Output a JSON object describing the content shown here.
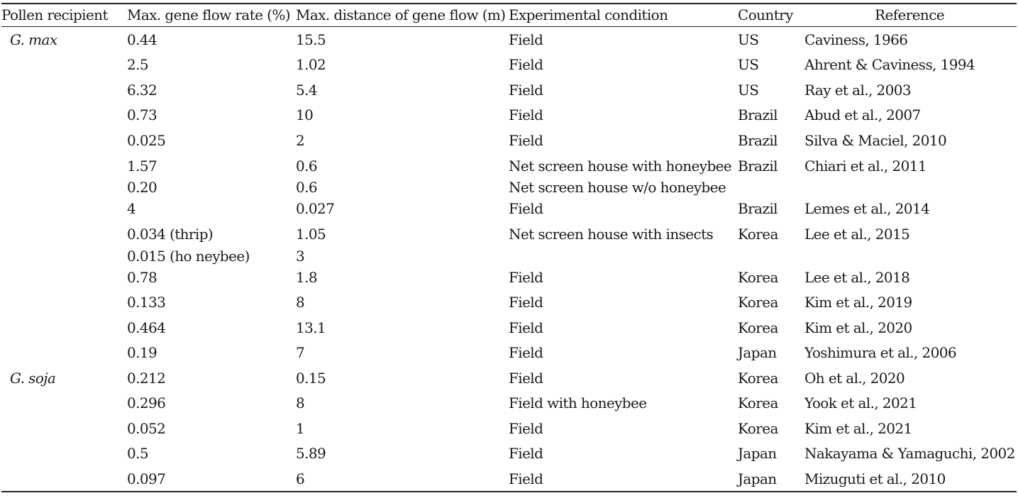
{
  "table": {
    "headers": [
      "Pollen recipient",
      "Max. gene flow rate (%)",
      "Max. distance of gene flow (m)",
      "Experimental condition",
      "Country",
      "Reference"
    ],
    "rows": [
      {
        "recipient": "G. max",
        "rate": "0.44",
        "distance": "15.5",
        "condition": "Field",
        "country": "US",
        "reference": "Caviness, 1966"
      },
      {
        "recipient": "",
        "rate": "2.5",
        "distance": "1.02",
        "condition": "Field",
        "country": "US",
        "reference": "Ahrent & Caviness, 1994"
      },
      {
        "recipient": "",
        "rate": "6.32",
        "distance": "5.4",
        "condition": "Field",
        "country": "US",
        "reference": "Ray et al., 2003"
      },
      {
        "recipient": "",
        "rate": "0.73",
        "distance": "10",
        "condition": "Field",
        "country": "Brazil",
        "reference": "Abud et al., 2007"
      },
      {
        "recipient": "",
        "rate": "0.025",
        "distance": "2",
        "condition": "Field",
        "country": "Brazil",
        "reference": "Silva & Maciel, 2010"
      },
      {
        "recipient": "",
        "rate": "1.57",
        "distance": "0.6",
        "condition": "Net screen house with honeybee",
        "country": "Brazil",
        "reference": "Chiari et al., 2011"
      },
      {
        "recipient": "",
        "rate": "0.20",
        "distance": "0.6",
        "condition": "Net screen house w/o honeybee",
        "country": "",
        "reference": ""
      },
      {
        "recipient": "",
        "rate": "4",
        "distance": "0.027",
        "condition": "Field",
        "country": "Brazil",
        "reference": "Lemes et al., 2014"
      },
      {
        "recipient": "",
        "rate": "0.034 (thrip)",
        "distance": "1.05",
        "condition": "Net screen house with insects",
        "country": "Korea",
        "reference": "Lee et al., 2015"
      },
      {
        "recipient": "",
        "rate": "0.015 (ho neybee)",
        "distance": "3",
        "condition": "",
        "country": "",
        "reference": ""
      },
      {
        "recipient": "",
        "rate": "0.78",
        "distance": "1.8",
        "condition": "Field",
        "country": "Korea",
        "reference": "Lee et al., 2018"
      },
      {
        "recipient": "",
        "rate": "0.133",
        "distance": "8",
        "condition": "Field",
        "country": "Korea",
        "reference": "Kim et al., 2019"
      },
      {
        "recipient": "",
        "rate": "0.464",
        "distance": "13.1",
        "condition": "Field",
        "country": "Korea",
        "reference": "Kim et al., 2020"
      },
      {
        "recipient": "",
        "rate": "0.19",
        "distance": "7",
        "condition": "Field",
        "country": "Japan",
        "reference": "Yoshimura et al., 2006"
      },
      {
        "recipient": "G. soja",
        "rate": "0.212",
        "distance": "0.15",
        "condition": "Field",
        "country": "Korea",
        "reference": "Oh et al., 2020"
      },
      {
        "recipient": "",
        "rate": "0.296",
        "distance": "8",
        "condition": "Field with honeybee",
        "country": "Korea",
        "reference": "Yook et al., 2021"
      },
      {
        "recipient": "",
        "rate": "0.052",
        "distance": "1",
        "condition": "Field",
        "country": "Korea",
        "reference": "Kim et al., 2021"
      },
      {
        "recipient": "",
        "rate": "0.5",
        "distance": "5.89",
        "condition": "Field",
        "country": "Japan",
        "reference": "Nakayama & Yamaguchi, 2002"
      },
      {
        "recipient": "",
        "rate": "0.097",
        "distance": "6",
        "condition": "Field",
        "country": "Japan",
        "reference": "Mizuguti et al., 2010"
      }
    ]
  }
}
